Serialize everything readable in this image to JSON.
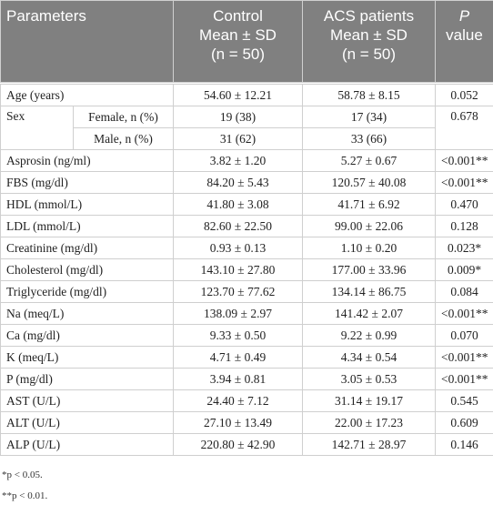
{
  "table": {
    "header": {
      "parameters": "Parameters",
      "control": [
        "Control",
        "Mean ± SD",
        "(n = 50)"
      ],
      "acs": [
        "ACS patients",
        "Mean ± SD",
        "(n = 50)"
      ],
      "p": [
        "P",
        "value"
      ]
    },
    "age": [
      "Age (years)",
      "54.60 ± 12.21",
      "58.78 ± 8.15",
      "0.052"
    ],
    "sex": {
      "label": "Sex",
      "p": "0.678",
      "sub": [
        [
          "Female, n (%)",
          "19 (38)",
          "17 (34)"
        ],
        [
          "Male, n (%)",
          "31 (62)",
          "33 (66)"
        ]
      ]
    },
    "rows": [
      [
        "Asprosin (ng/ml)",
        "3.82 ± 1.20",
        "5.27 ± 0.67",
        "<0.001**"
      ],
      [
        "FBS (mg/dl)",
        "84.20 ± 5.43",
        "120.57 ± 40.08",
        "<0.001**"
      ],
      [
        "HDL (mmol/L)",
        "41.80 ± 3.08",
        "41.71 ± 6.92",
        "0.470"
      ],
      [
        "LDL (mmol/L)",
        "82.60 ± 22.50",
        "99.00 ± 22.06",
        "0.128"
      ],
      [
        "Creatinine (mg/dl)",
        "0.93 ± 0.13",
        "1.10 ± 0.20",
        "0.023*"
      ],
      [
        "Cholesterol (mg/dl)",
        "143.10 ± 27.80",
        "177.00 ± 33.96",
        "0.009*"
      ],
      [
        "Triglyceride (mg/dl)",
        "123.70 ± 77.62",
        "134.14 ± 86.75",
        "0.084"
      ],
      [
        "Na (meq/L)",
        "138.09 ± 2.97",
        "141.42 ± 2.07",
        "<0.001**"
      ],
      [
        "Ca (mg/dl)",
        "9.33 ± 0.50",
        "9.22 ± 0.99",
        "0.070"
      ],
      [
        "K (meq/L)",
        "4.71 ± 0.49",
        "4.34 ± 0.54",
        "<0.001**"
      ],
      [
        "P (mg/dl)",
        "3.94 ± 0.81",
        "3.05 ± 0.53",
        "<0.001**"
      ],
      [
        "AST (U/L)",
        "24.40 ± 7.12",
        "31.14 ± 19.17",
        "0.545"
      ],
      [
        "ALT (U/L)",
        "27.10 ± 13.49",
        "22.00 ± 17.23",
        "0.609"
      ],
      [
        "ALP (U/L)",
        "220.80 ± 42.90",
        "142.71 ± 28.97",
        "0.146"
      ]
    ],
    "footnotes": [
      "*p < 0.05.",
      "**p < 0.01."
    ]
  }
}
